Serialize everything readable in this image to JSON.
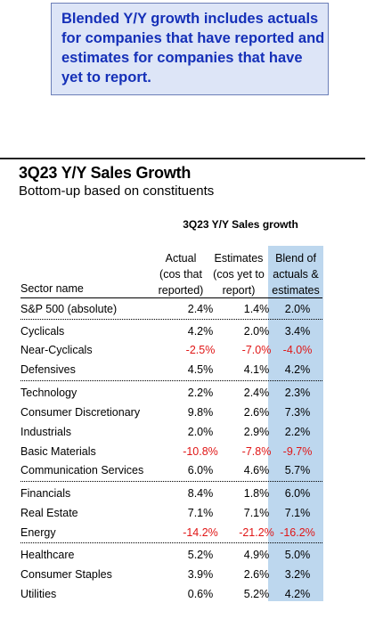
{
  "callout": {
    "line1": "Blended Y/Y growth includes actuals",
    "line2": "for companies that have reported and",
    "line3": "estimates for companies that have",
    "line4": "yet to report."
  },
  "chart_data": {
    "type": "table",
    "title": "3Q23 Y/Y Sales Growth",
    "subtitle": "Bottom-up based on constituents",
    "group_header": "3Q23 Y/Y Sales growth",
    "columns": [
      {
        "l1": "Actual",
        "l2": "(cos that",
        "l3": "reported)"
      },
      {
        "l1": "Estimates",
        "l2": "(cos yet to",
        "l3": "report)"
      },
      {
        "l1": "Blend of",
        "l2": "actuals &",
        "l3": "estimates"
      }
    ],
    "row_header": "Sector name",
    "rows": [
      {
        "sector": "S&P 500 (absolute)",
        "actual": "2.4%",
        "estimates": "1.4%",
        "blend": "2.0%"
      },
      {
        "sector": "Cyclicals",
        "actual": "4.2%",
        "estimates": "2.0%",
        "blend": "3.4%"
      },
      {
        "sector": "Near-Cyclicals",
        "actual": "-2.5%",
        "estimates": "-7.0%",
        "blend": "-4.0%"
      },
      {
        "sector": "Defensives",
        "actual": "4.5%",
        "estimates": "4.1%",
        "blend": "4.2%"
      },
      {
        "sector": "Technology",
        "actual": "2.2%",
        "estimates": "2.4%",
        "blend": "2.3%"
      },
      {
        "sector": "Consumer Discretionary",
        "actual": "9.8%",
        "estimates": "2.6%",
        "blend": "7.3%"
      },
      {
        "sector": "Industrials",
        "actual": "2.0%",
        "estimates": "2.9%",
        "blend": "2.2%"
      },
      {
        "sector": "Basic Materials",
        "actual": "-10.8%",
        "estimates": "-7.8%",
        "blend": "-9.7%"
      },
      {
        "sector": "Communication Services",
        "actual": "6.0%",
        "estimates": "4.6%",
        "blend": "5.7%"
      },
      {
        "sector": "Financials",
        "actual": "8.4%",
        "estimates": "1.8%",
        "blend": "6.0%"
      },
      {
        "sector": "Real Estate",
        "actual": "7.1%",
        "estimates": "7.1%",
        "blend": "7.1%"
      },
      {
        "sector": "Energy",
        "actual": "-14.2%",
        "estimates": "-21.2%",
        "blend": "-16.2%"
      },
      {
        "sector": "Healthcare",
        "actual": "5.2%",
        "estimates": "4.9%",
        "blend": "5.0%"
      },
      {
        "sector": "Consumer Staples",
        "actual": "3.9%",
        "estimates": "2.6%",
        "blend": "3.2%"
      },
      {
        "sector": "Utilities",
        "actual": "0.6%",
        "estimates": "5.2%",
        "blend": "4.2%"
      }
    ],
    "colors": {
      "negative": "#e01616",
      "blend_column": "#bdd7ee",
      "callout_text": "#1530b8",
      "callout_bg": "#dde5f7"
    }
  }
}
